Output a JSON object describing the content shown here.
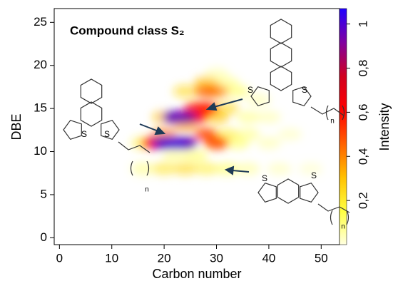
{
  "chart_data": {
    "type": "heatmap",
    "title": "Compound class S₂",
    "xlabel": "Carbon number",
    "ylabel": "DBE",
    "colorbar_label": "Intensity",
    "xlim": [
      -1,
      53.5
    ],
    "xticks": [
      0,
      10,
      20,
      30,
      40,
      50
    ],
    "ylim": [
      -0.8,
      26.6
    ],
    "yticks": [
      0,
      5,
      10,
      15,
      20,
      25
    ],
    "clim": [
      0,
      1.07
    ],
    "cticks": [
      {
        "value": 0.2,
        "label": "0,2"
      },
      {
        "value": 0.4,
        "label": "0,4"
      },
      {
        "value": 0.6,
        "label": "0,6"
      },
      {
        "value": 0.8,
        "label": "0,8"
      },
      1
    ],
    "colormap": [
      "#ffffe0",
      "#ffff40",
      "#ffc000",
      "#ff6000",
      "#ff0000",
      "#d00020",
      "#8000a0",
      "#2000ff"
    ],
    "cells": {
      "x": [
        48,
        42,
        44,
        40,
        30,
        36,
        38,
        40,
        34,
        34,
        32,
        16,
        36,
        32,
        32,
        28,
        22,
        26,
        16,
        36,
        24,
        28,
        24,
        20,
        30,
        30,
        20,
        28,
        32,
        20,
        30,
        24,
        28,
        30,
        28,
        26,
        18,
        26,
        24,
        22,
        20,
        24,
        22
      ],
      "y": [
        8,
        8,
        12,
        14,
        19,
        8,
        16,
        11,
        11,
        17,
        8,
        8,
        12,
        18,
        15,
        8,
        9.5,
        9.5,
        11,
        14,
        8,
        18,
        17,
        8,
        11,
        14,
        14,
        12,
        12,
        12,
        17,
        13,
        17,
        11,
        15,
        15,
        11,
        14,
        14,
        14,
        11,
        11,
        11
      ],
      "values": [
        0.05,
        0.07,
        0.06,
        0.08,
        0.08,
        0.1,
        0.08,
        0.08,
        0.15,
        0.15,
        0.15,
        0.12,
        0.12,
        0.12,
        0.25,
        0.2,
        0.12,
        0.15,
        0.2,
        0.12,
        0.25,
        0.3,
        0.25,
        0.22,
        0.3,
        0.3,
        0.3,
        0.5,
        0.2,
        0.4,
        0.4,
        0.35,
        0.45,
        0.5,
        0.6,
        0.55,
        0.6,
        0.6,
        0.9,
        0.95,
        0.95,
        0.95,
        1.0
      ]
    },
    "structures": [
      {
        "atoms": [
          "S",
          "S"
        ],
        "index": "n"
      },
      {
        "atoms": [
          "S",
          "S"
        ],
        "index": "n"
      },
      {
        "atoms": [
          "S",
          "S"
        ],
        "index": "n"
      }
    ]
  }
}
